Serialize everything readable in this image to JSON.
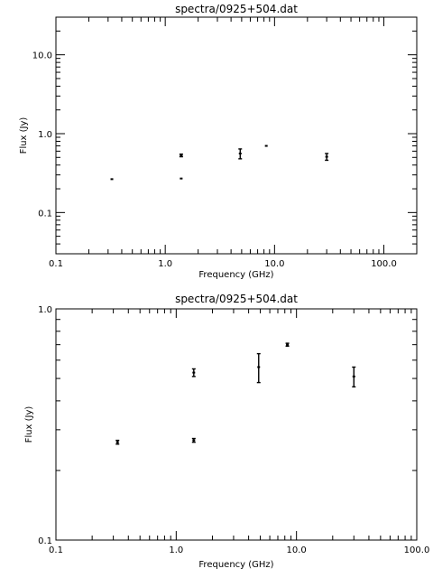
{
  "chart_data": [
    {
      "type": "scatter",
      "title": "spectra/0925+504.dat",
      "xlabel": "Frequency (GHz)",
      "ylabel": "Flux (Jy)",
      "xscale": "log",
      "yscale": "log",
      "xlim": [
        0.1,
        200
      ],
      "ylim": [
        0.03,
        30
      ],
      "xticks": [
        {
          "value": 0.1,
          "label": "0.1"
        },
        {
          "value": 1,
          "label": "1.0"
        },
        {
          "value": 10,
          "label": "10.0"
        },
        {
          "value": 100,
          "label": "100.0"
        }
      ],
      "yticks": [
        {
          "value": 0.1,
          "label": "0.1"
        },
        {
          "value": 1,
          "label": "1.0"
        },
        {
          "value": 10,
          "label": "10.0"
        }
      ],
      "points": [
        {
          "x": 0.325,
          "y": 0.265,
          "err": 0.005
        },
        {
          "x": 1.4,
          "y": 0.53,
          "err": 0.02
        },
        {
          "x": 1.4,
          "y": 0.27,
          "err": 0.005
        },
        {
          "x": 4.85,
          "y": 0.56,
          "err": 0.08
        },
        {
          "x": 8.4,
          "y": 0.7,
          "err": 0.01
        },
        {
          "x": 30,
          "y": 0.51,
          "err": 0.05
        }
      ]
    },
    {
      "type": "scatter",
      "title": "spectra/0925+504.dat",
      "xlabel": "Frequency (GHz)",
      "ylabel": "Flux (Jy)",
      "xscale": "log",
      "yscale": "log",
      "xlim": [
        0.1,
        100
      ],
      "ylim": [
        0.1,
        1
      ],
      "xticks": [
        {
          "value": 0.1,
          "label": "0.1"
        },
        {
          "value": 1,
          "label": "1.0"
        },
        {
          "value": 10,
          "label": "10.0"
        },
        {
          "value": 100,
          "label": "100.0"
        }
      ],
      "yticks": [
        {
          "value": 0.1,
          "label": "0.1"
        },
        {
          "value": 1,
          "label": "1.0"
        }
      ],
      "points": [
        {
          "x": 0.325,
          "y": 0.265,
          "err": 0.005
        },
        {
          "x": 1.4,
          "y": 0.53,
          "err": 0.02
        },
        {
          "x": 1.4,
          "y": 0.27,
          "err": 0.005
        },
        {
          "x": 4.85,
          "y": 0.56,
          "err": 0.08
        },
        {
          "x": 8.4,
          "y": 0.7,
          "err": 0.01
        },
        {
          "x": 30,
          "y": 0.51,
          "err": 0.05
        }
      ]
    }
  ]
}
